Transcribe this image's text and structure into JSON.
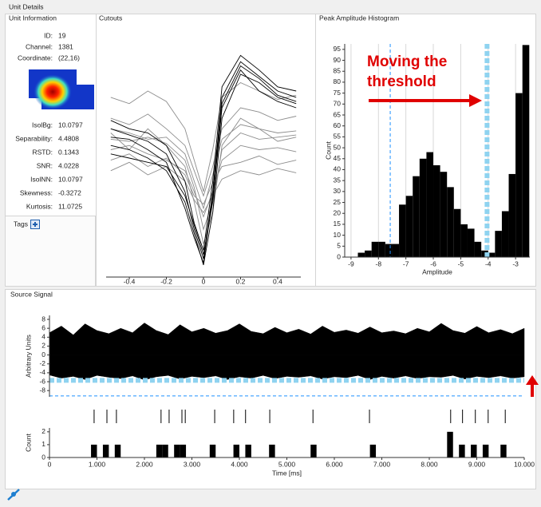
{
  "title": "Unit Details",
  "unit_information": {
    "title": "Unit Information",
    "fields": [
      {
        "label": "ID:",
        "value": 19
      },
      {
        "label": "Channel:",
        "value": 1381
      },
      {
        "label": "Coordinate:",
        "value": "(22,16)"
      },
      {
        "label": "IsolBg:",
        "value": 10.0797
      },
      {
        "label": "Separability:",
        "value": 4.4808
      },
      {
        "label": "RSTD:",
        "value": 0.1343
      },
      {
        "label": "SNR:",
        "value": 4.0228
      },
      {
        "label": "IsolNN:",
        "value": 10.0797
      },
      {
        "label": "Skewness:",
        "value": -0.3272
      },
      {
        "label": "Kurtosis:",
        "value": 11.0725
      }
    ],
    "tags_label": "Tags"
  },
  "source_signal_title": "Source Signal",
  "chart_data": [
    {
      "type": "line",
      "title": "Cutouts",
      "x": [
        -0.5,
        -0.4,
        -0.3,
        -0.2,
        -0.1,
        -0.05,
        0,
        0.05,
        0.1,
        0.2,
        0.3,
        0.4,
        0.5
      ],
      "series": [
        {
          "color": "#8c8c8c",
          "values": [
            -1,
            -1.2,
            -1.5,
            -1.4,
            -2.2,
            -3.5,
            -4.8,
            -3.2,
            -1.5,
            -0.8,
            -1,
            -1.2,
            -1.1
          ]
        },
        {
          "color": "#8c8c8c",
          "values": [
            -2,
            -1.8,
            -2.2,
            -2.5,
            -3,
            -4,
            -5.2,
            -4,
            -2.5,
            -1.8,
            -2,
            -1.9,
            -2.1
          ]
        },
        {
          "color": "#8c8c8c",
          "values": [
            -0.5,
            -0.8,
            -0.3,
            -1,
            -1.8,
            -3,
            -4.2,
            -2.8,
            -1,
            0,
            -0.2,
            -0.6,
            -0.4
          ]
        },
        {
          "color": "#8c8c8c",
          "values": [
            -1.5,
            -1.6,
            -1.4,
            -1.7,
            -2.5,
            -3.8,
            -5.8,
            -4.5,
            -2,
            -1.2,
            -1.5,
            -1.4,
            -1.3
          ]
        },
        {
          "color": "#8c8c8c",
          "values": [
            -2.5,
            -2.2,
            -2.8,
            -2.4,
            -3.2,
            -4.2,
            -4.6,
            -3.6,
            -2.8,
            -2.6,
            -2.3,
            -2.7,
            -2.5
          ]
        },
        {
          "color": "#8c8c8c",
          "values": [
            0.5,
            0.2,
            0.8,
            0.3,
            -1,
            -2.5,
            -4,
            -2,
            0.5,
            1.2,
            0.8,
            0.4,
            0.6
          ]
        },
        {
          "color": "#8c8c8c",
          "values": [
            -1.2,
            -2,
            -1,
            -1.8,
            -2.8,
            -4.5,
            -6.5,
            -5,
            -1.8,
            -0.5,
            -1,
            -1.6,
            -1.4
          ]
        },
        {
          "color": "#8c8c8c",
          "values": [
            -3,
            -2.6,
            -3.2,
            -2.8,
            -3.5,
            -4.4,
            -5,
            -4.2,
            -3.4,
            -3,
            -3.2,
            -2.9,
            -3.1
          ]
        },
        {
          "color": "#000000",
          "values": [
            -1,
            -1.3,
            -1.6,
            -2.2,
            -4,
            -5.8,
            -7.2,
            -4,
            0.5,
            2.2,
            1.5,
            0.8,
            0.5
          ]
        },
        {
          "color": "#000000",
          "values": [
            -1.8,
            -2,
            -2.4,
            -3,
            -4.5,
            -6,
            -7.5,
            -5,
            -0.5,
            1.6,
            1.2,
            0.5,
            0.2
          ]
        },
        {
          "color": "#000000",
          "values": [
            -0.6,
            -1,
            -1.2,
            -1.8,
            -3.5,
            -5.5,
            -6.8,
            -3.5,
            1,
            2.5,
            1.8,
            1,
            0.8
          ]
        },
        {
          "color": "#000000",
          "values": [
            -2.2,
            -2.4,
            -2.6,
            -2.8,
            -4.2,
            -5.6,
            -7,
            -4.5,
            0,
            1.8,
            0.8,
            0.3,
            0
          ]
        },
        {
          "color": "#000000",
          "values": [
            -1.4,
            -1.5,
            -2,
            -2.6,
            -4.8,
            -6.2,
            -7.4,
            -4.2,
            0.2,
            2,
            1.4,
            0.6,
            0.3
          ]
        }
      ],
      "xlim": [
        -0.525,
        0.525
      ],
      "ylim": [
        -8,
        4
      ],
      "xticks": [
        -0.4,
        -0.2,
        0,
        0.2,
        0.4
      ]
    },
    {
      "type": "histogram",
      "title": "Peak Amplitude Histogram",
      "bins": [
        -8.75,
        -8.5,
        -8.25,
        -8,
        -7.75,
        -7.5,
        -7.25,
        -7,
        -6.75,
        -6.5,
        -6.25,
        -6,
        -5.75,
        -5.5,
        -5.25,
        -5,
        -4.75,
        -4.5,
        -4.25,
        -4,
        -3.75,
        -3.5,
        -3.25,
        -3,
        -2.75,
        -2.5
      ],
      "values": [
        2,
        3,
        7,
        7,
        6,
        6,
        24,
        28,
        37,
        45,
        48,
        42,
        39,
        32,
        22,
        15,
        13,
        7,
        3,
        2,
        12,
        21,
        38,
        75,
        97
      ],
      "color": "#000000",
      "grid": true,
      "xlim": [
        -9.23,
        -2.48
      ],
      "ylim": [
        0,
        97.5
      ],
      "xticks": [
        -9,
        -8,
        -7,
        -6,
        -5,
        -4,
        -3
      ],
      "yticks": [
        0,
        5,
        10,
        15,
        20,
        25,
        30,
        35,
        40,
        45,
        50,
        55,
        60,
        65,
        70,
        75,
        80,
        85,
        90,
        95
      ],
      "xlabel": "Amplitude",
      "ylabel": "Count",
      "thresholds": [
        -7.57,
        -4.04
      ],
      "annotation": [
        "Moving the",
        "threshold"
      ]
    },
    {
      "type": "area",
      "x": [
        0,
        250,
        500,
        750,
        1000,
        1250,
        1500,
        1750,
        2000,
        2250,
        2500,
        2750,
        3000,
        3250,
        3500,
        3750,
        4000,
        4250,
        4500,
        4750,
        5000,
        5250,
        5500,
        5750,
        6000,
        6250,
        6500,
        6750,
        7000,
        7250,
        7500,
        7750,
        8000,
        8250,
        8500,
        8750,
        9000,
        9250,
        9500,
        9750,
        10000
      ],
      "series": [
        {
          "color": "#000000",
          "values": [
            5,
            6.5,
            4.5,
            7,
            5.5,
            4.8,
            6,
            5,
            7.2,
            5.5,
            4.6,
            6.8,
            5.2,
            6,
            4.9,
            5.5,
            7,
            5.3,
            4.8,
            6.2,
            5,
            5.8,
            4.7,
            6.5,
            5.1,
            5.6,
            4.9,
            6.3,
            5,
            5.4,
            4.8,
            6,
            5.2,
            7.1,
            5.5,
            4.9,
            6.4,
            5,
            5.7,
            4.8,
            6
          ]
        },
        {
          "color": "#000000",
          "values": [
            -4.5,
            -5.2,
            -4.8,
            -5.5,
            -4.6,
            -5,
            -5.3,
            -4.7,
            -5.6,
            -4.9,
            -4.6,
            -5.4,
            -4.8,
            -5.1,
            -4.7,
            -5.5,
            -4.9,
            -5.2,
            -4.6,
            -5.3,
            -4.8,
            -5,
            -4.7,
            -5.4,
            -4.9,
            -5.1,
            -4.6,
            -5.5,
            -4.8,
            -5.2,
            -4.7,
            -5.3,
            -4.9,
            -5,
            -4.6,
            -5.4,
            -4.8,
            -5.1,
            -4.7,
            -5.2,
            -4.9
          ]
        }
      ],
      "xlim": [
        0,
        10000
      ],
      "ylim": [
        -9.4,
        8.9
      ],
      "yticks": [
        -8,
        -6,
        -4,
        -2,
        0,
        2,
        4,
        6,
        8
      ],
      "ylabel": "Arbitrary Units",
      "thresholds": [
        -5.7,
        -9.2
      ]
    },
    {
      "type": "raster",
      "x": [
        940,
        1210,
        1410,
        2350,
        2520,
        2790,
        2860,
        3480,
        3880,
        4130,
        4640,
        5550,
        6740,
        8450,
        8700,
        8970,
        9240,
        9600
      ],
      "color": "#000000",
      "xlim": [
        0,
        10000
      ]
    },
    {
      "type": "bar",
      "x": [
        875,
        1125,
        1375,
        2250,
        2375,
        2625,
        2750,
        3375,
        3875,
        4125,
        4625,
        5500,
        6750,
        8375,
        8625,
        8875,
        9125,
        9500
      ],
      "values": [
        1,
        1,
        1,
        1,
        1,
        1,
        1,
        1,
        1,
        1,
        1,
        1,
        1,
        2,
        1,
        1,
        1,
        1
      ],
      "bar_width": 125,
      "color": "#000000",
      "xlim": [
        0,
        10000
      ],
      "ylim": [
        0,
        2.3
      ],
      "yticks": [
        0,
        1,
        2
      ],
      "xticks": [
        0,
        {
          "value": 1000,
          "label": "1.000"
        },
        {
          "value": 2000,
          "label": "2.000"
        },
        {
          "value": 3000,
          "label": "3.000"
        },
        {
          "value": 4000,
          "label": "4.000"
        },
        {
          "value": 5000,
          "label": "5.000"
        },
        {
          "value": 6000,
          "label": "6.000"
        },
        {
          "value": 7000,
          "label": "7.000"
        },
        {
          "value": 8000,
          "label": "8.000"
        },
        {
          "value": 9000,
          "label": "9.000"
        },
        {
          "value": 10000,
          "label": "10.000"
        }
      ],
      "xlabel": "Time [ms]",
      "ylabel": "Count"
    }
  ]
}
